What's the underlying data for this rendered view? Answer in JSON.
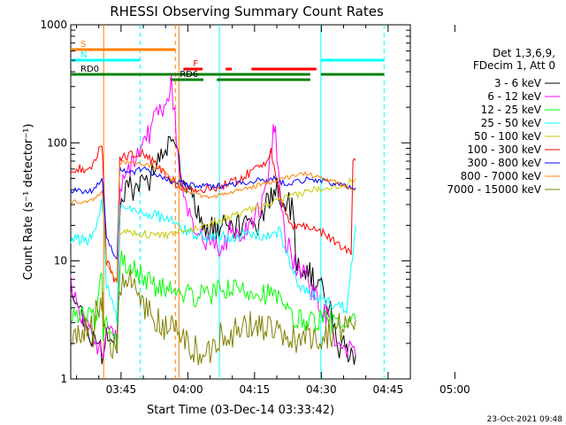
{
  "chart_data": {
    "type": "line",
    "title": "RHESSI Observing Summary Count Rates",
    "xlabel": "Start Time (03-Dec-14 03:33:42)",
    "ylabel": "Count Rate (s⁻¹ detector⁻¹)",
    "yscale": "log",
    "ylim": [
      1,
      1000
    ],
    "y_ticks": [
      "1",
      "10",
      "100",
      "1000"
    ],
    "x_start": "03:33:42",
    "xlim_min": [
      213.7,
      290.0
    ],
    "x_ticks": [
      {
        "label": "03:45",
        "t": 225
      },
      {
        "label": "04:00",
        "t": 240
      },
      {
        "label": "04:15",
        "t": 255
      },
      {
        "label": "04:30",
        "t": 270
      },
      {
        "label": "04:45",
        "t": 285
      },
      {
        "label": "05:00",
        "t": 300
      }
    ],
    "legend_header": [
      "Det 1,3,6,9,",
      "FDecim 1, Att 0"
    ],
    "series": [
      {
        "name": "3 - 6 keV",
        "color": "#000000"
      },
      {
        "name": "6 - 12 keV",
        "color": "#ff00ff"
      },
      {
        "name": "12 - 25 keV",
        "color": "#00ff00"
      },
      {
        "name": "25 - 50 keV",
        "color": "#00ffff"
      },
      {
        "name": "50 - 100 keV",
        "color": "#c8c800"
      },
      {
        "name": "100 - 300 keV",
        "color": "#ff0000"
      },
      {
        "name": "300 - 800 keV",
        "color": "#0000ff"
      },
      {
        "name": "800 - 7000 keV",
        "color": "#ff8000"
      },
      {
        "name": "7000 - 15000 keV",
        "color": "#808000"
      }
    ],
    "profiles": [
      {
        "pts": [
          [
            0,
            0.8
          ],
          [
            2.8,
            0.5
          ],
          [
            6,
            0.3
          ],
          [
            7,
            0.2
          ],
          [
            8,
            0.4
          ],
          [
            10.4,
            0.3
          ],
          [
            11.1,
            1.5
          ],
          [
            13,
            1.6
          ],
          [
            18,
            1.7
          ],
          [
            22.6,
            2.0
          ],
          [
            24.4,
            1.8
          ],
          [
            26,
            1.6
          ],
          [
            28,
            1.5
          ],
          [
            30,
            1.3
          ],
          [
            32,
            1.3
          ],
          [
            34,
            1.3
          ],
          [
            36,
            1.25
          ],
          [
            38,
            1.3
          ],
          [
            40,
            1.35
          ],
          [
            42,
            1.3
          ],
          [
            44,
            1.5
          ],
          [
            46,
            1.6
          ],
          [
            48,
            1.55
          ],
          [
            50,
            1.4
          ],
          [
            50.5,
            1.0
          ],
          [
            55,
            0.85
          ],
          [
            58,
            0.6
          ],
          [
            60,
            0.3
          ],
          [
            64,
            0.2
          ]
        ]
      },
      {
        "pts": [
          [
            0,
            0.8
          ],
          [
            2.8,
            0.5
          ],
          [
            6,
            0.3
          ],
          [
            7,
            0.2
          ],
          [
            8,
            0.4
          ],
          [
            10.4,
            0.3
          ],
          [
            11.1,
            1.6
          ],
          [
            13,
            1.8
          ],
          [
            16,
            1.95
          ],
          [
            19,
            2.2
          ],
          [
            22,
            2.3
          ],
          [
            22.6,
            2.5
          ],
          [
            23.4,
            2.2
          ],
          [
            24.4,
            1.8
          ],
          [
            26,
            1.5
          ],
          [
            28,
            1.3
          ],
          [
            30,
            1.15
          ],
          [
            32,
            1.2
          ],
          [
            34,
            1.05
          ],
          [
            36,
            1.3
          ],
          [
            38,
            1.2
          ],
          [
            40,
            1.3
          ],
          [
            42,
            1.4
          ],
          [
            44,
            1.6
          ],
          [
            45.5,
            2.1
          ],
          [
            46,
            2.1
          ],
          [
            47,
            1.6
          ],
          [
            48,
            1.2
          ],
          [
            50,
            1.0
          ],
          [
            52,
            0.9
          ],
          [
            55,
            0.7
          ],
          [
            58,
            0.5
          ],
          [
            60,
            0.3
          ],
          [
            64,
            0.2
          ]
        ]
      },
      {
        "pts": [
          [
            0,
            0.55
          ],
          [
            2,
            0.55
          ],
          [
            4,
            0.55
          ],
          [
            5.7,
            0.5
          ],
          [
            6,
            0.6
          ],
          [
            7,
            0.95
          ],
          [
            7.3,
            0.3
          ],
          [
            8,
            0.5
          ],
          [
            10.4,
            0.3
          ],
          [
            11.1,
            1.0
          ],
          [
            14,
            0.95
          ],
          [
            18,
            0.8
          ],
          [
            22,
            0.75
          ],
          [
            26,
            0.7
          ],
          [
            30,
            0.7
          ],
          [
            34,
            0.75
          ],
          [
            38,
            0.75
          ],
          [
            42,
            0.75
          ],
          [
            46,
            0.7
          ],
          [
            48,
            0.6
          ],
          [
            50,
            0.5
          ],
          [
            54,
            0.5
          ],
          [
            58,
            0.5
          ],
          [
            62,
            0.4
          ],
          [
            64,
            0.5
          ]
        ]
      },
      {
        "pts": [
          [
            0,
            1.18
          ],
          [
            3,
            1.18
          ],
          [
            5,
            1.2
          ],
          [
            6,
            1.35
          ],
          [
            7,
            1.5
          ],
          [
            7.4,
            1.4
          ],
          [
            8,
            0.8
          ],
          [
            10.4,
            0.5
          ],
          [
            11,
            1.45
          ],
          [
            14,
            1.43
          ],
          [
            18,
            1.4
          ],
          [
            22,
            1.35
          ],
          [
            26,
            1.25
          ],
          [
            30,
            1.2
          ],
          [
            34,
            1.2
          ],
          [
            38,
            1.22
          ],
          [
            42,
            1.22
          ],
          [
            46,
            1.2
          ],
          [
            47,
            1.3
          ],
          [
            48,
            1.1
          ],
          [
            50,
            0.9
          ],
          [
            52,
            0.75
          ],
          [
            55,
            0.7
          ],
          [
            58,
            0.65
          ],
          [
            62,
            0.6
          ],
          [
            64,
            1.3
          ]
        ]
      },
      {
        "pts": [
          [
            11.1,
            1.25
          ],
          [
            14,
            1.24
          ],
          [
            18,
            1.22
          ],
          [
            22,
            1.22
          ],
          [
            26,
            1.25
          ],
          [
            30,
            1.3
          ],
          [
            34,
            1.35
          ],
          [
            38,
            1.4
          ],
          [
            42,
            1.45
          ],
          [
            46,
            1.5
          ],
          [
            50,
            1.55
          ],
          [
            54,
            1.6
          ],
          [
            58,
            1.63
          ],
          [
            62,
            1.65
          ],
          [
            64,
            1.7
          ]
        ]
      },
      {
        "pts": [
          [
            0,
            1.78
          ],
          [
            3,
            1.78
          ],
          [
            5,
            1.82
          ],
          [
            6,
            1.9
          ],
          [
            7,
            2.0
          ],
          [
            7.3,
            1.8
          ],
          [
            8,
            1.0
          ],
          [
            10.4,
            0.8
          ],
          [
            11,
            1.88
          ],
          [
            14,
            1.9
          ],
          [
            16,
            1.92
          ],
          [
            18,
            1.85
          ],
          [
            20,
            1.78
          ],
          [
            22,
            1.7
          ],
          [
            24,
            1.65
          ],
          [
            26,
            1.62
          ],
          [
            28,
            1.6
          ],
          [
            30,
            1.6
          ],
          [
            32,
            1.62
          ],
          [
            34,
            1.64
          ],
          [
            36,
            1.66
          ],
          [
            38,
            1.7
          ],
          [
            40,
            1.74
          ],
          [
            42,
            1.8
          ],
          [
            44,
            1.85
          ],
          [
            45,
            1.95
          ],
          [
            46,
            1.7
          ],
          [
            47,
            1.55
          ],
          [
            48,
            1.4
          ],
          [
            50,
            1.3
          ],
          [
            52,
            1.3
          ],
          [
            54,
            1.28
          ],
          [
            56,
            1.25
          ],
          [
            58,
            1.2
          ],
          [
            60,
            1.15
          ],
          [
            62,
            1.1
          ],
          [
            63,
            1.05
          ],
          [
            63.4,
            1.85
          ],
          [
            64,
            1.85
          ]
        ]
      },
      {
        "pts": [
          [
            0,
            1.6
          ],
          [
            3,
            1.59
          ],
          [
            5,
            1.6
          ],
          [
            6,
            1.65
          ],
          [
            7,
            1.7
          ],
          [
            7.3,
            1.6
          ],
          [
            8,
            1.2
          ],
          [
            10.4,
            1.0
          ],
          [
            11,
            1.78
          ],
          [
            14,
            1.75
          ],
          [
            16,
            1.78
          ],
          [
            18,
            1.75
          ],
          [
            20,
            1.73
          ],
          [
            22,
            1.68
          ],
          [
            24,
            1.66
          ],
          [
            26,
            1.65
          ],
          [
            28,
            1.64
          ],
          [
            30,
            1.63
          ],
          [
            32,
            1.63
          ],
          [
            34,
            1.64
          ],
          [
            36,
            1.65
          ],
          [
            38,
            1.66
          ],
          [
            40,
            1.67
          ],
          [
            42,
            1.68
          ],
          [
            44,
            1.68
          ],
          [
            46,
            1.7
          ],
          [
            47,
            1.68
          ],
          [
            48,
            1.65
          ],
          [
            50,
            1.67
          ],
          [
            52,
            1.68
          ],
          [
            54,
            1.7
          ],
          [
            56,
            1.68
          ],
          [
            58,
            1.66
          ],
          [
            60,
            1.65
          ],
          [
            62,
            1.63
          ],
          [
            64,
            1.62
          ]
        ]
      },
      {
        "pts": [
          [
            0,
            1.5
          ],
          [
            3,
            1.5
          ],
          [
            5,
            1.52
          ],
          [
            6,
            1.55
          ],
          [
            7,
            1.6
          ],
          [
            7.3,
            1.5
          ],
          [
            8,
            1.0
          ],
          [
            10.4,
            0.8
          ],
          [
            11,
            1.83
          ],
          [
            14,
            1.84
          ],
          [
            16,
            1.82
          ],
          [
            18,
            1.8
          ],
          [
            20,
            1.78
          ],
          [
            22,
            1.72
          ],
          [
            24,
            1.65
          ],
          [
            26,
            1.6
          ],
          [
            28,
            1.57
          ],
          [
            30,
            1.55
          ],
          [
            32,
            1.55
          ],
          [
            34,
            1.56
          ],
          [
            36,
            1.58
          ],
          [
            38,
            1.6
          ],
          [
            40,
            1.62
          ],
          [
            42,
            1.64
          ],
          [
            44,
            1.66
          ],
          [
            46,
            1.68
          ],
          [
            48,
            1.7
          ],
          [
            50,
            1.72
          ],
          [
            52,
            1.74
          ],
          [
            54,
            1.73
          ],
          [
            56,
            1.7
          ],
          [
            58,
            1.68
          ],
          [
            60,
            1.66
          ],
          [
            62,
            1.63
          ],
          [
            64,
            1.6
          ]
        ]
      },
      {
        "pts": [
          [
            0,
            0.35
          ],
          [
            3,
            0.4
          ],
          [
            5,
            0.4
          ],
          [
            6,
            0.6
          ],
          [
            7,
            0.7
          ],
          [
            7.3,
            0.5
          ],
          [
            8,
            0.3
          ],
          [
            10.4,
            0.3
          ],
          [
            11,
            0.85
          ],
          [
            14,
            0.8
          ],
          [
            16,
            0.65
          ],
          [
            18,
            0.55
          ],
          [
            20,
            0.45
          ],
          [
            22,
            0.45
          ],
          [
            24,
            0.4
          ],
          [
            26,
            0.3
          ],
          [
            28,
            0.25
          ],
          [
            30,
            0.15
          ],
          [
            32,
            0.3
          ],
          [
            34,
            0.4
          ],
          [
            36,
            0.4
          ],
          [
            38,
            0.4
          ],
          [
            40,
            0.45
          ],
          [
            42,
            0.45
          ],
          [
            44,
            0.45
          ],
          [
            46,
            0.4
          ],
          [
            48,
            0.3
          ],
          [
            50,
            0.35
          ],
          [
            54,
            0.35
          ],
          [
            58,
            0.4
          ],
          [
            62,
            0.45
          ],
          [
            64,
            0.5
          ]
        ]
      }
    ],
    "boundaries": [
      {
        "x": 7.4,
        "color": "#ff8000",
        "dash": false
      },
      {
        "x": 23.5,
        "color": "#ff8000",
        "dash": true
      },
      {
        "x": 24.3,
        "color": "#ff8000",
        "dash": false
      },
      {
        "x": 15.6,
        "color": "#00ffff",
        "dash": true
      },
      {
        "x": 33.4,
        "color": "#00ffff",
        "dash": false
      },
      {
        "x": 56.2,
        "color": "#00ffff",
        "dash": false
      },
      {
        "x": 70.4,
        "color": "#00ffff",
        "dash": true
      }
    ],
    "flag_bars": [
      {
        "label": "S",
        "color": "#ff8000",
        "y": 0.93,
        "segs": [
          [
            0,
            23.5
          ]
        ]
      },
      {
        "label": "N",
        "color": "#00ffff",
        "y": 0.9,
        "segs": [
          [
            0,
            15.6
          ],
          [
            56.2,
            70.4
          ]
        ]
      },
      {
        "label": "F",
        "color": "#ff0000",
        "y": 0.875,
        "segs": [
          [
            25.3,
            29.6
          ],
          [
            34.8,
            36.2
          ],
          [
            40.6,
            55.2
          ]
        ]
      },
      {
        "label": "RD0",
        "color": "#008000",
        "y": 0.86,
        "segs": [
          [
            0,
            53.8
          ],
          [
            56.2,
            70.4
          ]
        ]
      },
      {
        "label": "RD6",
        "color": "#008000",
        "y": 0.845,
        "segs": [
          [
            22.3,
            29.8
          ],
          [
            32.8,
            53.8
          ]
        ]
      }
    ],
    "footer_date": "23-Oct-2021 09:48"
  }
}
